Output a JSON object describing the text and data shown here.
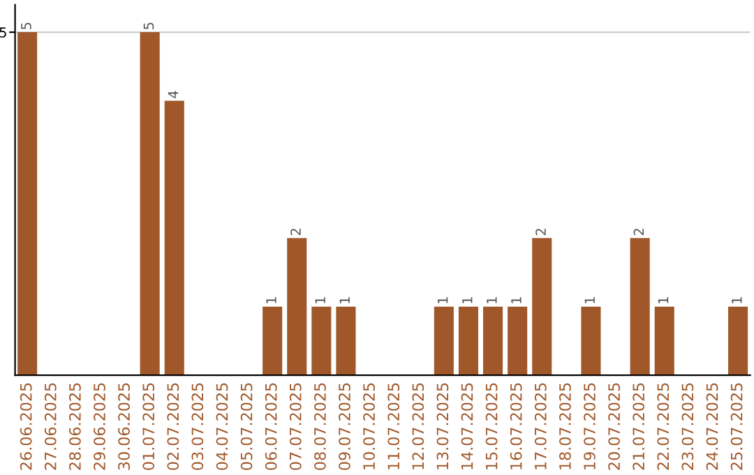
{
  "chart_data": {
    "type": "bar",
    "categories": [
      "26.06.2025",
      "27.06.2025",
      "28.06.2025",
      "29.06.2025",
      "30.06.2025",
      "01.07.2025",
      "02.07.2025",
      "03.07.2025",
      "04.07.2025",
      "05.07.2025",
      "06.07.2025",
      "07.07.2025",
      "08.07.2025",
      "09.07.2025",
      "10.07.2025",
      "11.07.2025",
      "12.07.2025",
      "13.07.2025",
      "14.07.2025",
      "15.07.2025",
      "16.07.2025",
      "17.07.2025",
      "18.07.2025",
      "19.07.2025",
      "20.07.2025",
      "21.07.2025",
      "22.07.2025",
      "23.07.2025",
      "24.07.2025",
      "25.07.2025"
    ],
    "values": [
      5,
      0,
      0,
      0,
      0,
      5,
      4,
      0,
      0,
      0,
      1,
      2,
      1,
      1,
      0,
      0,
      0,
      1,
      1,
      1,
      1,
      2,
      0,
      1,
      0,
      2,
      1,
      0,
      0,
      1
    ],
    "color": "#a0582a",
    "ylim": [
      0,
      5.4
    ],
    "yticks": [
      5
    ],
    "grid": "y",
    "value_labels": [
      "5",
      null,
      null,
      null,
      null,
      "5",
      "4",
      null,
      null,
      null,
      "1",
      "2",
      "1",
      "1",
      null,
      null,
      null,
      "1",
      "1",
      "1",
      "1",
      "2",
      null,
      "1",
      null,
      "2",
      "1",
      null,
      null,
      "1"
    ]
  }
}
